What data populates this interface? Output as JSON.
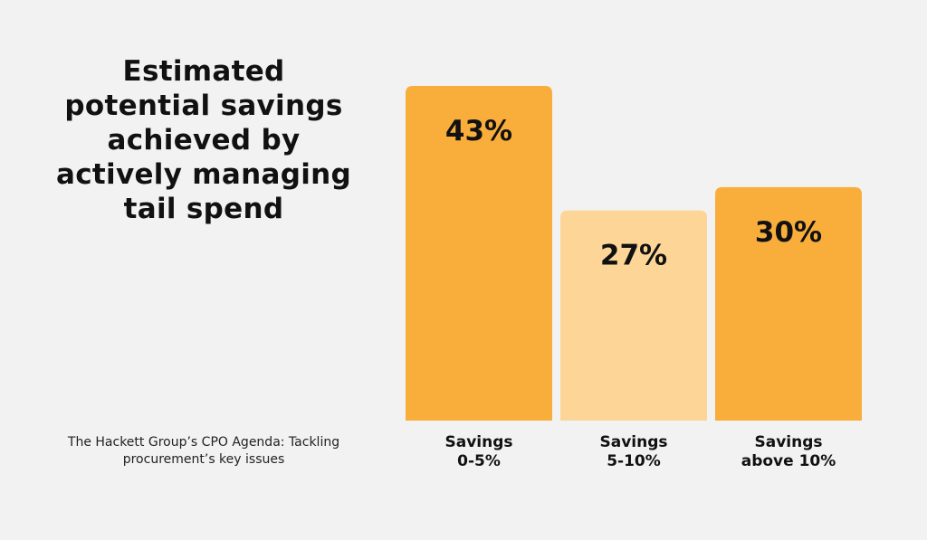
{
  "title": "Estimated potential savings achieved by actively managing tail spend",
  "source": "The Hackett Group’s CPO Agenda: Tackling procurement’s key issues",
  "colors": {
    "background": "#f2f2f2",
    "bar_primary": "#f9ae3c",
    "bar_light": "#fdd597",
    "text": "#111111"
  },
  "chart_data": {
    "type": "bar",
    "title": "Estimated potential savings achieved by actively managing tail spend",
    "categories": [
      "Savings 0-5%",
      "Savings 5-10%",
      "Savings above 10%"
    ],
    "category_lines": [
      [
        "Savings",
        "0-5%"
      ],
      [
        "Savings",
        "5-10%"
      ],
      [
        "Savings",
        "above 10%"
      ]
    ],
    "values": [
      43,
      27,
      30
    ],
    "value_labels": [
      "43%",
      "27%",
      "30%"
    ],
    "unit": "%",
    "bar_colors": [
      "#f9ae3c",
      "#fdd597",
      "#f9ae3c"
    ],
    "ylim": [
      0,
      43
    ],
    "grid": false,
    "legend": "none"
  }
}
